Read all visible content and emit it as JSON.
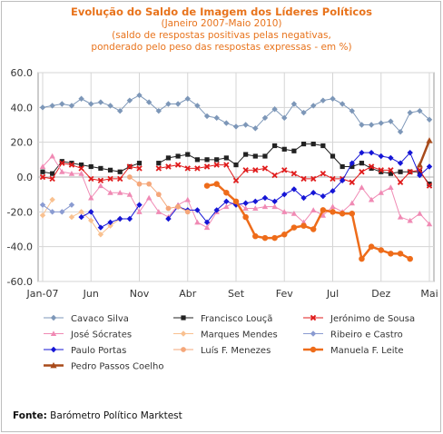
{
  "titles": {
    "line1": "Evolução do Saldo  de Imagem dos Líderes Políticos",
    "line2": "(Janeiro 2007-Maio 2010)",
    "line3": "(saldo de respostas positivas pelas negativas,",
    "line4": "ponderado pelo peso das respostas expressas - em %)"
  },
  "source": {
    "prefix": "Fonte:",
    "text": " Barómetro Político Marktest"
  },
  "chart_data": {
    "type": "line",
    "x_count": 41,
    "x_tick_labels": [
      {
        "index": 0,
        "label": "Jan-07"
      },
      {
        "index": 5,
        "label": "Jun"
      },
      {
        "index": 10,
        "label": "Nov"
      },
      {
        "index": 15,
        "label": "Abr"
      },
      {
        "index": 20,
        "label": "Set"
      },
      {
        "index": 25,
        "label": "Fev"
      },
      {
        "index": 30,
        "label": "Jul"
      },
      {
        "index": 35,
        "label": "Dez"
      },
      {
        "index": 40,
        "label": "Mai"
      }
    ],
    "ylim": [
      -60,
      60
    ],
    "y_ticks": [
      "60.0",
      "40.0",
      "20.0",
      "0.0",
      "-20.0",
      "-40.0",
      "-60.0"
    ],
    "grid": true,
    "legend_position": "bottom",
    "series": [
      {
        "name": "Cavaco Silva",
        "color": "#7d97b8",
        "marker": "diamond",
        "width": 1,
        "values": [
          40,
          41,
          42,
          41,
          45,
          42,
          43,
          41,
          38,
          44,
          47,
          43,
          38,
          42,
          42,
          45,
          41,
          35,
          34,
          31,
          29,
          30,
          28,
          34,
          39,
          34,
          42,
          37,
          41,
          44,
          45,
          42,
          38,
          30,
          30,
          31,
          32,
          26,
          37,
          38,
          33
        ]
      },
      {
        "name": "Francisco Louçã",
        "color": "#222222",
        "marker": "square",
        "width": 1,
        "values": [
          3,
          2,
          9,
          8,
          7,
          6,
          5,
          4,
          3,
          6,
          8,
          null,
          8,
          11,
          12,
          13,
          10,
          10,
          10,
          11,
          7,
          13,
          12,
          12,
          18,
          16,
          15,
          19,
          19,
          18,
          12,
          6,
          6,
          8,
          5,
          3,
          2,
          3,
          3,
          3,
          -4
        ]
      },
      {
        "name": "Jerónimo de Sousa",
        "color": "#e01b1b",
        "marker": "x",
        "width": 1,
        "values": [
          0,
          -1,
          8,
          7,
          5,
          -1,
          -2,
          -1,
          -1,
          6,
          5,
          null,
          5,
          6,
          7,
          5,
          5,
          6,
          7,
          7,
          -2,
          4,
          4,
          5,
          1,
          4,
          2,
          -1,
          -1,
          2,
          -1,
          -1,
          -3,
          3,
          6,
          4,
          4,
          -3,
          3,
          4,
          -5
        ]
      },
      {
        "name": "José Sócrates",
        "color": "#f08ab4",
        "marker": "triangle",
        "width": 1,
        "values": [
          6,
          12,
          3,
          2,
          2,
          -12,
          -5,
          -9,
          -9,
          -10,
          -20,
          -12,
          -20,
          -23,
          -16,
          -13,
          -26,
          -29,
          -20,
          -17,
          -14,
          -18,
          -18,
          -17,
          -17,
          -20,
          -21,
          -26,
          -19,
          -22,
          -17,
          -20,
          -15,
          -6,
          -13,
          -9,
          -6,
          -23,
          -25,
          -21,
          -27
        ]
      },
      {
        "name": "Marques Mendes",
        "color": "#f9c190",
        "marker": "diamond",
        "width": 1,
        "values": [
          -22,
          -13,
          null,
          -23,
          -20,
          -25,
          -33,
          -28,
          -24,
          null,
          null,
          null,
          null,
          null,
          null,
          null,
          null,
          null,
          null,
          null,
          null,
          null,
          null,
          null,
          null,
          null,
          null,
          null,
          null,
          null,
          null,
          null,
          null,
          null,
          null,
          null,
          null,
          null,
          null,
          null,
          null
        ]
      },
      {
        "name": "Ribeiro e Castro",
        "color": "#8a9bd1",
        "marker": "diamond",
        "width": 1,
        "values": [
          -16,
          -20,
          -20,
          -16,
          null,
          null,
          null,
          null,
          null,
          null,
          null,
          null,
          null,
          null,
          null,
          null,
          null,
          null,
          null,
          null,
          null,
          null,
          null,
          null,
          null,
          null,
          null,
          null,
          null,
          null,
          null,
          null,
          null,
          null,
          null,
          null,
          null,
          null,
          null,
          null,
          null
        ]
      },
      {
        "name": "Paulo Portas",
        "color": "#1515d6",
        "marker": "diamond",
        "width": 1,
        "values": [
          null,
          null,
          null,
          null,
          -23,
          -20,
          -29,
          -26,
          -24,
          -24,
          -16,
          null,
          null,
          -24,
          -17,
          -19,
          -19,
          -26,
          -19,
          -14,
          -16,
          -15,
          -14,
          -12,
          -14,
          -10,
          -7,
          -12,
          -9,
          -11,
          -8,
          -2,
          8,
          14,
          14,
          12,
          11,
          8,
          14,
          1,
          6
        ]
      },
      {
        "name": "Luís F. Menezes",
        "color": "#f5a77a",
        "marker": "circle",
        "width": 1,
        "values": [
          null,
          null,
          null,
          null,
          null,
          null,
          null,
          null,
          null,
          0,
          -4,
          -4,
          -10,
          -18,
          -17,
          -20,
          null,
          null,
          null,
          null,
          null,
          null,
          null,
          null,
          null,
          null,
          null,
          null,
          null,
          null,
          null,
          null,
          null,
          null,
          null,
          null,
          null,
          null,
          null,
          null,
          null
        ]
      },
      {
        "name": "Manuela F. Leite",
        "color": "#ee6c1a",
        "marker": "circle",
        "width": 2.5,
        "values": [
          null,
          null,
          null,
          null,
          null,
          null,
          null,
          null,
          null,
          null,
          null,
          null,
          null,
          null,
          null,
          null,
          null,
          -5,
          -4,
          -9,
          -14,
          -23,
          -34,
          -35,
          -35,
          -33,
          -29,
          -28,
          -30,
          -19,
          -20,
          -21,
          -21,
          -47,
          -40,
          -42,
          -44,
          -44,
          -47,
          null,
          null
        ]
      },
      {
        "name": "Pedro Passos Coelho",
        "color": "#a84a1a",
        "marker": "triangle",
        "width": 2.5,
        "values": [
          null,
          null,
          null,
          null,
          null,
          null,
          null,
          null,
          null,
          null,
          null,
          null,
          null,
          null,
          null,
          null,
          null,
          null,
          null,
          null,
          null,
          null,
          null,
          null,
          null,
          null,
          null,
          null,
          null,
          null,
          null,
          null,
          null,
          null,
          null,
          null,
          null,
          null,
          null,
          7,
          21
        ]
      }
    ]
  }
}
